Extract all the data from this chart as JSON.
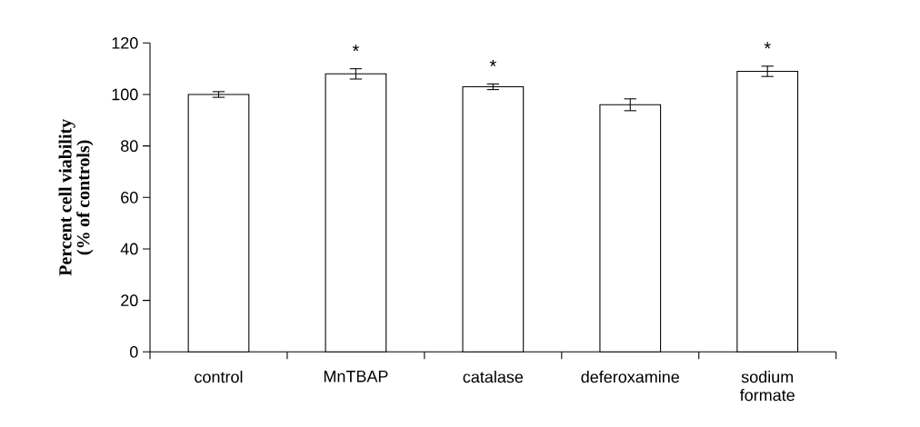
{
  "chart_data": {
    "type": "bar",
    "ylabel": "Percent cell viability (% of controls)",
    "categories": [
      "control",
      "MnTBAP",
      "catalase",
      "deferoxamine",
      "sodium formate"
    ],
    "values": [
      100,
      108,
      103,
      96,
      109
    ],
    "errors": [
      1.1,
      2,
      1.1,
      2.3,
      2
    ],
    "color": "#ffffff",
    "value_labels": [
      null,
      "*",
      "*",
      null,
      "*"
    ],
    "ylim": [
      0,
      120
    ],
    "yticks": [
      0,
      20,
      40,
      60,
      80,
      100,
      120
    ],
    "grid": false
  }
}
